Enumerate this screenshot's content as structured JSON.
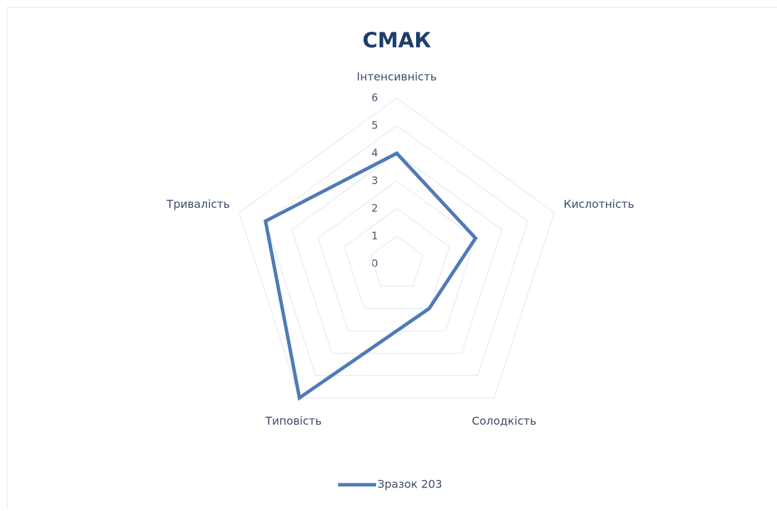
{
  "chart_data": {
    "type": "radar",
    "title": "СМАК",
    "categories": [
      "Інтенсивність",
      "Кислотність",
      "Солодкість",
      "Типовість",
      "Тривалість"
    ],
    "series": [
      {
        "name": "Зразок 203",
        "color": "#4f7ab8",
        "values": [
          4,
          3,
          2,
          6,
          5
        ]
      }
    ],
    "ylim": [
      0,
      6
    ],
    "yticks": [
      0,
      1,
      2,
      3,
      4,
      5,
      6
    ],
    "grid": true,
    "legend": "bottom"
  }
}
